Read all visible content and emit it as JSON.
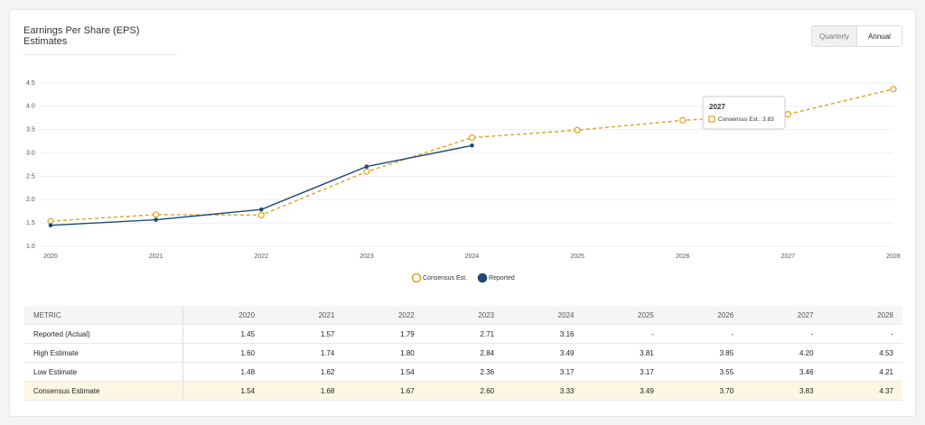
{
  "header": {
    "title": "Earnings Per Share (EPS) Estimates",
    "buttons": [
      "Quarterly",
      "Annual"
    ]
  },
  "chart_data": {
    "type": "line",
    "categories": [
      "2020",
      "2021",
      "2022",
      "2023",
      "2024",
      "2025",
      "2026",
      "2027",
      "2028"
    ],
    "series": [
      {
        "name": "Consensus Est.",
        "color": "#e0a020",
        "dashed": true,
        "marker": "hollow",
        "values": [
          1.54,
          1.68,
          1.67,
          2.6,
          3.33,
          3.49,
          3.7,
          3.83,
          4.37
        ]
      },
      {
        "name": "Reported",
        "color": "#1d4a78",
        "dashed": false,
        "marker": "filled",
        "values": [
          1.45,
          1.57,
          1.79,
          2.71,
          3.16,
          null,
          null,
          null,
          null
        ]
      }
    ],
    "ylim": [
      1,
      4.5
    ],
    "yticks": [
      {
        "value": 1,
        "label": "1.0"
      },
      1.5,
      {
        "value": 2,
        "label": "2.0"
      },
      2.5,
      {
        "value": 3,
        "label": "3.0"
      },
      3.5,
      {
        "value": 4,
        "label": "4.0"
      },
      4.5
    ],
    "grid": true,
    "tooltip": {
      "title": "2027",
      "text": "Consensus Est.: 3.83"
    }
  },
  "table": {
    "header": [
      "METRIC",
      "2020",
      "2021",
      "2022",
      "2023",
      "2024",
      "2025",
      "2026",
      "2027",
      "2028"
    ],
    "rows": [
      [
        "Reported (Actual)",
        "1.45",
        "1.57",
        "1.79",
        "2.71",
        "3.16",
        "-",
        "-",
        "-",
        "-"
      ],
      [
        "High Estimate",
        "1.60",
        "1.74",
        "1.80",
        "2.84",
        "3.49",
        "3.81",
        "3.85",
        "4.20",
        "4.53"
      ],
      [
        "Low Estimate",
        "1.48",
        "1.62",
        "1.54",
        "2.36",
        "3.17",
        "3.17",
        "3.55",
        "3.46",
        "4.21"
      ],
      [
        "Consensus Estimate",
        "1.54",
        "1.68",
        "1.67",
        "2.60",
        "3.33",
        "3.49",
        "3.70",
        "3.83",
        "4.37"
      ]
    ]
  }
}
